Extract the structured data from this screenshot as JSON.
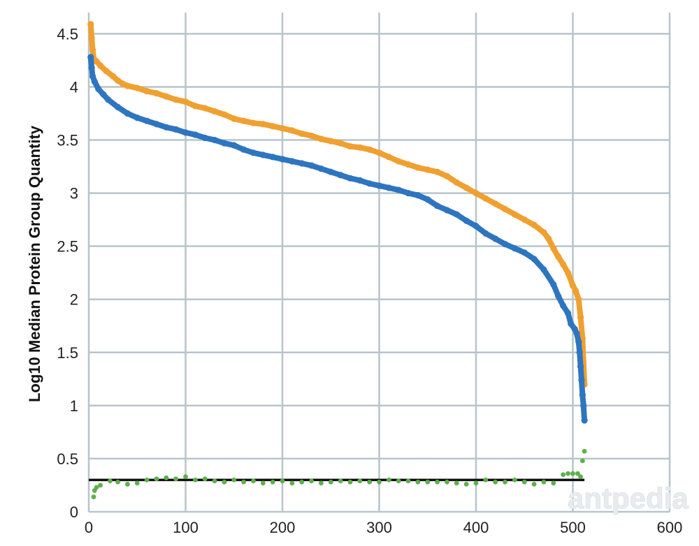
{
  "chart_data": {
    "type": "scatter",
    "title": "",
    "xlabel": "",
    "ylabel": "Log10 Median Protein Group Quantity",
    "xlim": [
      0,
      600
    ],
    "ylim": [
      0,
      4.7
    ],
    "x_ticks": [
      0,
      100,
      200,
      300,
      400,
      500,
      600
    ],
    "y_ticks": [
      {
        "value": 0,
        "label": "0"
      },
      {
        "value": 0.5,
        "label": "0.5"
      },
      {
        "value": 1,
        "label": "1"
      },
      {
        "value": 1.5,
        "label": "1.5"
      },
      {
        "value": 2,
        "label": "2"
      },
      {
        "value": 2.5,
        "label": "2.5"
      },
      {
        "value": 3,
        "label": "3"
      },
      {
        "value": 3.5,
        "label": "3.5"
      },
      {
        "value": 4,
        "label": "4"
      },
      {
        "value": 4.5,
        "label": "4.5"
      }
    ],
    "grid": true,
    "legend": "none",
    "reference_line": {
      "y": 0.3,
      "x_range": [
        0,
        512
      ],
      "color": "#111111"
    },
    "series": [
      {
        "color": "#f0a030",
        "x": [
          2,
          3,
          4,
          5,
          8,
          12,
          18,
          25,
          30,
          35,
          40,
          50,
          60,
          70,
          80,
          90,
          100,
          110,
          120,
          130,
          140,
          150,
          160,
          170,
          180,
          190,
          200,
          210,
          220,
          230,
          240,
          250,
          260,
          270,
          280,
          290,
          300,
          310,
          320,
          330,
          340,
          350,
          360,
          370,
          380,
          390,
          400,
          410,
          420,
          430,
          440,
          450,
          460,
          470,
          475,
          480,
          485,
          490,
          495,
          500,
          503,
          506,
          508,
          510,
          512
        ],
        "y": [
          4.59,
          4.46,
          4.35,
          4.27,
          4.24,
          4.2,
          4.15,
          4.1,
          4.06,
          4.03,
          4.01,
          3.99,
          3.96,
          3.94,
          3.91,
          3.88,
          3.86,
          3.82,
          3.8,
          3.77,
          3.74,
          3.7,
          3.68,
          3.66,
          3.65,
          3.63,
          3.61,
          3.59,
          3.56,
          3.54,
          3.51,
          3.49,
          3.47,
          3.44,
          3.43,
          3.41,
          3.38,
          3.34,
          3.3,
          3.27,
          3.24,
          3.22,
          3.2,
          3.16,
          3.1,
          3.05,
          3.0,
          2.95,
          2.9,
          2.85,
          2.8,
          2.75,
          2.7,
          2.63,
          2.57,
          2.48,
          2.4,
          2.33,
          2.25,
          2.13,
          2.08,
          2.0,
          1.83,
          1.63,
          1.2
        ]
      },
      {
        "color": "#2e75c0",
        "x": [
          2,
          3,
          4,
          6,
          10,
          15,
          20,
          30,
          40,
          50,
          60,
          70,
          80,
          90,
          100,
          110,
          120,
          130,
          140,
          150,
          160,
          170,
          180,
          190,
          200,
          210,
          220,
          230,
          240,
          250,
          260,
          270,
          280,
          290,
          300,
          310,
          320,
          330,
          340,
          350,
          360,
          370,
          380,
          390,
          400,
          410,
          420,
          430,
          440,
          450,
          460,
          470,
          480,
          485,
          490,
          495,
          498,
          502,
          504,
          506,
          507,
          508,
          509,
          510,
          511,
          512
        ],
        "y": [
          4.28,
          4.18,
          4.1,
          4.05,
          3.98,
          3.93,
          3.88,
          3.81,
          3.75,
          3.71,
          3.68,
          3.65,
          3.62,
          3.6,
          3.57,
          3.55,
          3.52,
          3.5,
          3.47,
          3.45,
          3.41,
          3.38,
          3.36,
          3.34,
          3.32,
          3.3,
          3.28,
          3.26,
          3.23,
          3.2,
          3.17,
          3.14,
          3.12,
          3.09,
          3.07,
          3.05,
          3.03,
          3.0,
          2.98,
          2.94,
          2.88,
          2.84,
          2.8,
          2.74,
          2.69,
          2.62,
          2.57,
          2.52,
          2.48,
          2.44,
          2.38,
          2.28,
          2.14,
          2.03,
          1.94,
          1.87,
          1.77,
          1.72,
          1.68,
          1.6,
          1.5,
          1.37,
          1.24,
          1.1,
          1.0,
          0.86
        ]
      },
      {
        "color": "#5db04a",
        "x": [
          5,
          6,
          8,
          12,
          22,
          30,
          40,
          50,
          60,
          70,
          80,
          90,
          100,
          110,
          120,
          130,
          140,
          150,
          160,
          170,
          180,
          190,
          200,
          210,
          220,
          230,
          240,
          250,
          260,
          270,
          280,
          290,
          300,
          310,
          320,
          330,
          340,
          350,
          360,
          370,
          380,
          390,
          400,
          410,
          420,
          430,
          440,
          450,
          460,
          470,
          480,
          490,
          495,
          500,
          505,
          508,
          510,
          512
        ],
        "y": [
          0.14,
          0.2,
          0.23,
          0.25,
          0.29,
          0.28,
          0.26,
          0.27,
          0.3,
          0.31,
          0.32,
          0.31,
          0.33,
          0.3,
          0.31,
          0.29,
          0.28,
          0.3,
          0.28,
          0.29,
          0.27,
          0.28,
          0.29,
          0.27,
          0.28,
          0.29,
          0.27,
          0.28,
          0.29,
          0.28,
          0.29,
          0.28,
          0.28,
          0.3,
          0.29,
          0.29,
          0.28,
          0.28,
          0.28,
          0.28,
          0.27,
          0.26,
          0.27,
          0.3,
          0.28,
          0.28,
          0.3,
          0.28,
          0.26,
          0.28,
          0.27,
          0.35,
          0.36,
          0.36,
          0.36,
          0.33,
          0.48,
          0.57
        ]
      }
    ]
  },
  "watermark": "antpedia"
}
